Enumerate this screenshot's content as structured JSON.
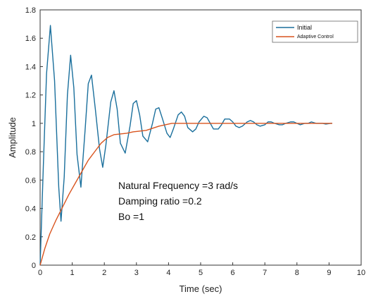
{
  "chart_data": {
    "type": "line",
    "xlabel": "Time (sec)",
    "ylabel": "Amplitude",
    "xlim": [
      0,
      10
    ],
    "ylim": [
      0,
      1.8
    ],
    "xticks": [
      "0",
      "1",
      "2",
      "3",
      "4",
      "5",
      "6",
      "7",
      "8",
      "9",
      "10"
    ],
    "yticks": [
      "0",
      "0.2",
      "0.4",
      "0.6",
      "0.8",
      "1",
      "1.2",
      "1.4",
      "1.6",
      "1.8"
    ],
    "grid": false,
    "legend_position": "top-right",
    "series": [
      {
        "name": "Initial",
        "color": "#1a6f9c",
        "x": [
          0,
          0.1,
          0.2,
          0.32,
          0.45,
          0.58,
          0.65,
          0.75,
          0.85,
          0.95,
          1.05,
          1.15,
          1.27,
          1.4,
          1.5,
          1.6,
          1.72,
          1.85,
          1.95,
          2.05,
          2.2,
          2.3,
          2.4,
          2.5,
          2.65,
          2.8,
          2.9,
          3.0,
          3.1,
          3.2,
          3.35,
          3.5,
          3.6,
          3.7,
          3.8,
          3.95,
          4.05,
          4.15,
          4.3,
          4.4,
          4.5,
          4.6,
          4.75,
          4.85,
          4.95,
          5.1,
          5.2,
          5.3,
          5.4,
          5.55,
          5.65,
          5.75,
          5.9,
          6.0,
          6.1,
          6.2,
          6.3,
          6.45,
          6.55,
          6.65,
          6.75,
          6.85,
          7.0,
          7.1,
          7.2,
          7.3,
          7.45,
          7.55,
          7.65,
          7.8,
          7.9,
          8.0,
          8.1,
          8.25,
          8.35,
          8.45,
          8.6,
          8.7,
          8.8,
          8.9,
          9.05,
          9.1
        ],
        "y": [
          0,
          0.7,
          1.35,
          1.69,
          1.3,
          0.55,
          0.31,
          0.62,
          1.2,
          1.48,
          1.25,
          0.78,
          0.55,
          0.95,
          1.28,
          1.34,
          1.1,
          0.82,
          0.69,
          0.85,
          1.15,
          1.23,
          1.1,
          0.86,
          0.79,
          0.98,
          1.14,
          1.16,
          1.06,
          0.91,
          0.87,
          1.0,
          1.1,
          1.11,
          1.04,
          0.93,
          0.9,
          0.96,
          1.06,
          1.08,
          1.05,
          0.97,
          0.94,
          0.96,
          1.01,
          1.05,
          1.04,
          1.0,
          0.96,
          0.96,
          0.99,
          1.03,
          1.03,
          1.01,
          0.98,
          0.97,
          0.98,
          1.01,
          1.02,
          1.01,
          0.99,
          0.98,
          0.99,
          1.01,
          1.01,
          1.0,
          0.99,
          0.99,
          1.0,
          1.01,
          1.01,
          1.0,
          0.99,
          1.0,
          1.0,
          1.01,
          1.0,
          1.0,
          1.0,
          0.995,
          1.0,
          1.0
        ]
      },
      {
        "name": "Adaptive Control",
        "color": "#d9541e",
        "x": [
          0,
          0.15,
          0.3,
          0.5,
          0.7,
          0.9,
          1.1,
          1.3,
          1.5,
          1.7,
          1.9,
          2.1,
          2.3,
          2.5,
          2.7,
          2.9,
          3.1,
          3.3,
          3.5,
          3.7,
          3.9,
          4.1,
          4.3,
          4.5,
          4.7,
          4.9,
          5.1,
          5.3,
          5.5,
          5.7,
          5.9,
          6.1,
          6.3,
          6.5,
          6.7,
          6.9,
          7.1,
          7.3,
          7.5,
          7.7,
          7.9,
          8.1,
          8.3,
          8.5,
          8.7,
          8.9,
          9.1
        ],
        "y": [
          0,
          0.12,
          0.22,
          0.32,
          0.41,
          0.5,
          0.58,
          0.66,
          0.74,
          0.8,
          0.86,
          0.9,
          0.92,
          0.925,
          0.93,
          0.94,
          0.945,
          0.95,
          0.965,
          0.98,
          0.99,
          1.0,
          1.0,
          1.0,
          1.0,
          1.0,
          1.0,
          1.0,
          1.0,
          1.0,
          1.0,
          1.0,
          1.0,
          1.0,
          1.0,
          1.0,
          1.0,
          1.0,
          1.0,
          1.0,
          1.0,
          1.0,
          1.0,
          1.0,
          1.0,
          1.0,
          1.0
        ]
      }
    ],
    "annotation": {
      "lines": [
        "Natural Frequency =3 rad/s",
        "Damping ratio =0.2",
        "Bo =1"
      ]
    }
  }
}
